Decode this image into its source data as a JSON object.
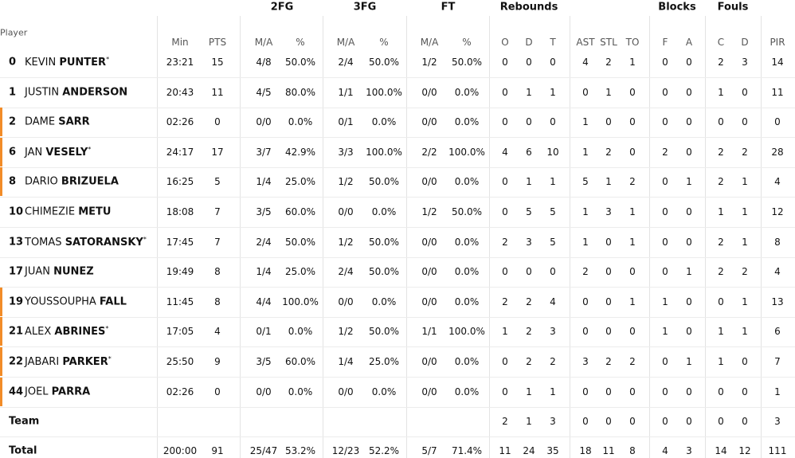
{
  "table": {
    "player_header": "Player",
    "groups": [
      {
        "label": "2FG",
        "span": [
          2,
          3
        ]
      },
      {
        "label": "3FG",
        "span": [
          4,
          5
        ]
      },
      {
        "label": "FT",
        "span": [
          6,
          7
        ]
      },
      {
        "label": "Rebounds",
        "span": [
          8,
          10
        ]
      },
      {
        "label": "Blocks",
        "span": [
          14,
          15
        ]
      },
      {
        "label": "Fouls",
        "span": [
          16,
          17
        ]
      }
    ],
    "columns": [
      "Min",
      "PTS",
      "M/A",
      "%",
      "M/A",
      "%",
      "M/A",
      "%",
      "O",
      "D",
      "T",
      "AST",
      "STL",
      "TO",
      "F",
      "A",
      "C",
      "D",
      "PIR"
    ],
    "rows": [
      {
        "number": "0",
        "first": "KEVIN",
        "last": "PUNTER",
        "starter": "*",
        "cells": [
          "23:21",
          "15",
          "4/8",
          "50.0%",
          "2/4",
          "50.0%",
          "1/2",
          "50.0%",
          "0",
          "0",
          "0",
          "4",
          "2",
          "1",
          "0",
          "0",
          "2",
          "3",
          "14"
        ]
      },
      {
        "number": "1",
        "first": "JUSTIN",
        "last": "ANDERSON",
        "cells": [
          "20:43",
          "11",
          "4/5",
          "80.0%",
          "1/1",
          "100.0%",
          "0/0",
          "0.0%",
          "0",
          "1",
          "1",
          "0",
          "1",
          "0",
          "0",
          "0",
          "1",
          "0",
          "11"
        ]
      },
      {
        "number": "2",
        "first": "DAME",
        "last": "SARR",
        "cells": [
          "02:26",
          "0",
          "0/0",
          "0.0%",
          "0/1",
          "0.0%",
          "0/0",
          "0.0%",
          "0",
          "0",
          "0",
          "1",
          "0",
          "0",
          "0",
          "0",
          "0",
          "0",
          "0"
        ]
      },
      {
        "number": "6",
        "first": "JAN",
        "last": "VESELY",
        "starter": "*",
        "cells": [
          "24:17",
          "17",
          "3/7",
          "42.9%",
          "3/3",
          "100.0%",
          "2/2",
          "100.0%",
          "4",
          "6",
          "10",
          "1",
          "2",
          "0",
          "2",
          "0",
          "2",
          "2",
          "28"
        ]
      },
      {
        "number": "8",
        "first": "DARIO",
        "last": "BRIZUELA",
        "cells": [
          "16:25",
          "5",
          "1/4",
          "25.0%",
          "1/2",
          "50.0%",
          "0/0",
          "0.0%",
          "0",
          "1",
          "1",
          "5",
          "1",
          "2",
          "0",
          "1",
          "2",
          "1",
          "4"
        ]
      },
      {
        "number": "10",
        "first": "CHIMEZIE",
        "last": "METU",
        "cells": [
          "18:08",
          "7",
          "3/5",
          "60.0%",
          "0/0",
          "0.0%",
          "1/2",
          "50.0%",
          "0",
          "5",
          "5",
          "1",
          "3",
          "1",
          "0",
          "0",
          "1",
          "1",
          "12"
        ]
      },
      {
        "number": "13",
        "first": "TOMAS",
        "last": "SATORANSKY",
        "starter": "*",
        "cells": [
          "17:45",
          "7",
          "2/4",
          "50.0%",
          "1/2",
          "50.0%",
          "0/0",
          "0.0%",
          "2",
          "3",
          "5",
          "1",
          "0",
          "1",
          "0",
          "0",
          "2",
          "1",
          "8"
        ]
      },
      {
        "number": "17",
        "first": "JUAN",
        "last": "NUNEZ",
        "cells": [
          "19:49",
          "8",
          "1/4",
          "25.0%",
          "2/4",
          "50.0%",
          "0/0",
          "0.0%",
          "0",
          "0",
          "0",
          "2",
          "0",
          "0",
          "0",
          "1",
          "2",
          "2",
          "4"
        ]
      },
      {
        "number": "19",
        "first": "YOUSSOUPHA",
        "last": "FALL",
        "cells": [
          "11:45",
          "8",
          "4/4",
          "100.0%",
          "0/0",
          "0.0%",
          "0/0",
          "0.0%",
          "2",
          "2",
          "4",
          "0",
          "0",
          "1",
          "1",
          "0",
          "0",
          "1",
          "13"
        ]
      },
      {
        "number": "21",
        "first": "ALEX",
        "last": "ABRINES",
        "starter": "*",
        "cells": [
          "17:05",
          "4",
          "0/1",
          "0.0%",
          "1/2",
          "50.0%",
          "1/1",
          "100.0%",
          "1",
          "2",
          "3",
          "0",
          "0",
          "0",
          "1",
          "0",
          "1",
          "1",
          "6"
        ]
      },
      {
        "number": "22",
        "first": "JABARI",
        "last": "PARKER",
        "starter": "*",
        "cells": [
          "25:50",
          "9",
          "3/5",
          "60.0%",
          "1/4",
          "25.0%",
          "0/0",
          "0.0%",
          "0",
          "2",
          "2",
          "3",
          "2",
          "2",
          "0",
          "1",
          "1",
          "0",
          "7"
        ]
      },
      {
        "number": "44",
        "first": "JOEL",
        "last": "PARRA",
        "cells": [
          "02:26",
          "0",
          "0/0",
          "0.0%",
          "0/0",
          "0.0%",
          "0/0",
          "0.0%",
          "0",
          "1",
          "1",
          "0",
          "0",
          "0",
          "0",
          "0",
          "0",
          "0",
          "1"
        ]
      }
    ],
    "team": {
      "label": "Team",
      "cells": [
        null,
        null,
        null,
        null,
        null,
        null,
        null,
        null,
        "2",
        "1",
        "3",
        "0",
        "0",
        "0",
        "0",
        "0",
        "0",
        "0",
        "3"
      ]
    },
    "total": {
      "label": "Total",
      "cells": [
        "200:00",
        "91",
        "25/47",
        "53.2%",
        "12/23",
        "52.2%",
        "5/7",
        "71.4%",
        "11",
        "24",
        "35",
        "18",
        "11",
        "8",
        "4",
        "3",
        "14",
        "12",
        "111"
      ]
    }
  }
}
